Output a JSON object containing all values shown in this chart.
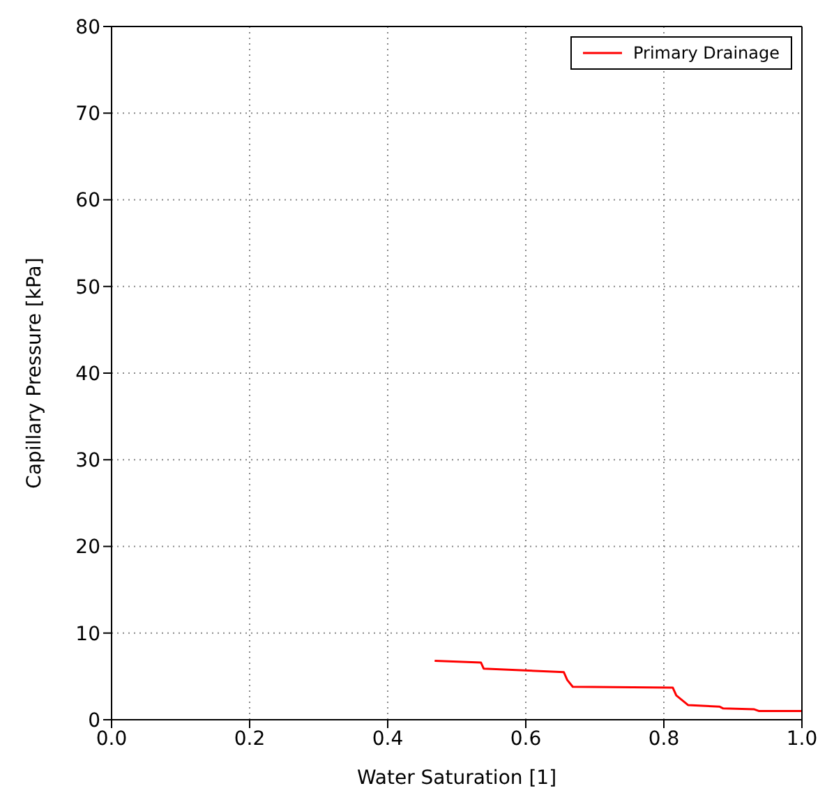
{
  "chart_data": {
    "type": "line",
    "xlabel": "Water Saturation [1]",
    "ylabel": "Capillary Pressure [kPa]",
    "xlim": [
      0,
      1
    ],
    "ylim": [
      0,
      80
    ],
    "xticks": [
      {
        "value": 0,
        "label": "0.0"
      },
      {
        "value": 0.2,
        "label": "0.2"
      },
      {
        "value": 0.4,
        "label": "0.4"
      },
      {
        "value": 0.6,
        "label": "0.6"
      },
      {
        "value": 0.8,
        "label": "0.8"
      },
      {
        "value": 1,
        "label": "1.0"
      }
    ],
    "yticks": [
      0,
      10,
      20,
      30,
      40,
      50,
      60,
      70,
      80
    ],
    "grid": true,
    "legend": "top right",
    "marker": "none",
    "line_style": "solid",
    "series": [
      {
        "name": "Primary Drainage",
        "color": "#ff0000",
        "x": [
          0.468,
          0.535,
          0.539,
          0.655,
          0.66,
          0.668,
          0.813,
          0.818,
          0.835,
          0.881,
          0.886,
          0.931,
          0.938,
          1.0
        ],
        "values": [
          6.8,
          6.6,
          5.9,
          5.5,
          4.6,
          3.8,
          3.7,
          2.8,
          1.7,
          1.5,
          1.3,
          1.2,
          1.0,
          1.0
        ]
      }
    ]
  }
}
